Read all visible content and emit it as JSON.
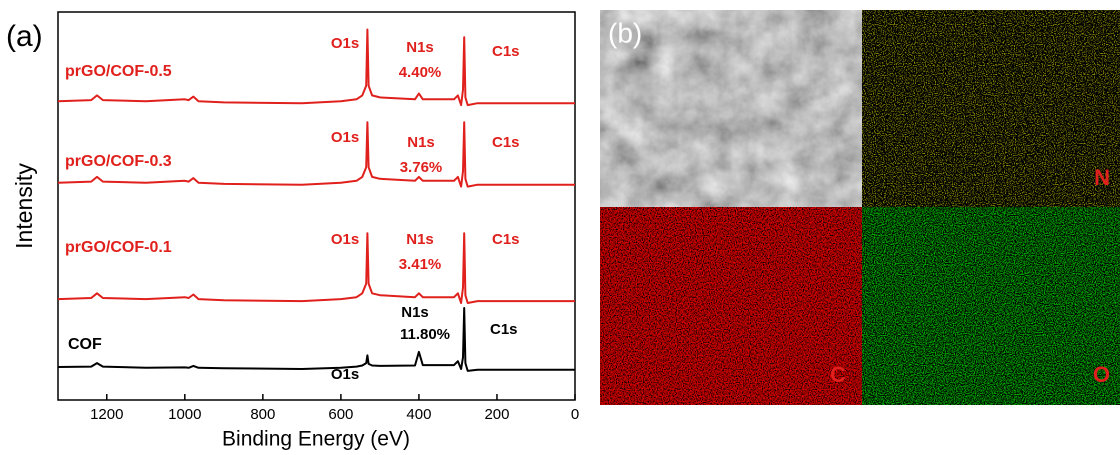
{
  "chart_data": {
    "type": "line",
    "panel_label": "(a)",
    "x_label": "Binding Energy (eV)",
    "y_label": "Intensity",
    "x": [
      1325,
      1240,
      1225,
      1210,
      1100,
      1000,
      990,
      978,
      965,
      900,
      700,
      600,
      560,
      545,
      535,
      532,
      529,
      520,
      500,
      410,
      400,
      390,
      310,
      300,
      292,
      287,
      284,
      281,
      275,
      250,
      0
    ],
    "xlim": [
      1325,
      0
    ],
    "xticks": [
      1200,
      1000,
      800,
      600,
      400,
      200,
      0
    ],
    "ylim": [
      0,
      100
    ],
    "series": [
      {
        "name": "prGO/COF-0.5",
        "color": "#e0201c",
        "values": [
          77,
          77.3,
          78.5,
          77.3,
          77,
          77.5,
          77.3,
          78.2,
          77,
          76.7,
          76.5,
          77,
          77.5,
          78.5,
          81,
          95.5,
          81,
          78.5,
          78,
          77.5,
          79,
          77.5,
          77.5,
          78.5,
          76,
          80,
          93.5,
          78,
          76,
          76.5,
          76.5
        ],
        "peak_labels": [
          "O1s",
          "N1s",
          "4.40%",
          "C1s"
        ]
      },
      {
        "name": "prGO/COF-0.3",
        "color": "#e0201c",
        "values": [
          56,
          56.3,
          57.5,
          56.3,
          56,
          56.5,
          56.3,
          57.2,
          56,
          55.7,
          55.5,
          56,
          56.5,
          57.5,
          60,
          71.6,
          60,
          57.5,
          57,
          56.5,
          57.5,
          56.5,
          56.5,
          57.5,
          55,
          59,
          71.6,
          57,
          55,
          55.5,
          55.5
        ],
        "peak_labels": [
          "O1s",
          "N1s",
          "3.76%",
          "C1s"
        ]
      },
      {
        "name": "prGO/COF-0.1",
        "color": "#e0201c",
        "values": [
          26,
          26.3,
          27.5,
          26.3,
          26,
          26.5,
          26.3,
          27.2,
          26,
          25.7,
          25.5,
          26,
          26.5,
          27.5,
          30,
          43,
          30,
          27.5,
          27,
          26.5,
          27.5,
          26.5,
          26.5,
          27.5,
          25,
          29,
          43,
          27,
          25,
          25.5,
          25.5
        ],
        "peak_labels": [
          "O1s",
          "N1s",
          "3.41%",
          "C1s"
        ]
      },
      {
        "name": "COF",
        "color": "#000000",
        "values": [
          8.5,
          8.6,
          9.5,
          8.6,
          8.3,
          8.4,
          8.3,
          8.8,
          8.3,
          8.2,
          8,
          8.3,
          8.6,
          8.9,
          9.5,
          11.5,
          9.3,
          8.9,
          8.8,
          8.9,
          12.4,
          9,
          9,
          10,
          8,
          11,
          23.7,
          9.5,
          7.5,
          7.8,
          7.8
        ],
        "peak_labels": [
          "O1s",
          "N1s",
          "11.80%",
          "C1s"
        ]
      }
    ]
  },
  "panel_b": {
    "label": "(b)",
    "maps": [
      "N",
      "C",
      "O"
    ]
  }
}
